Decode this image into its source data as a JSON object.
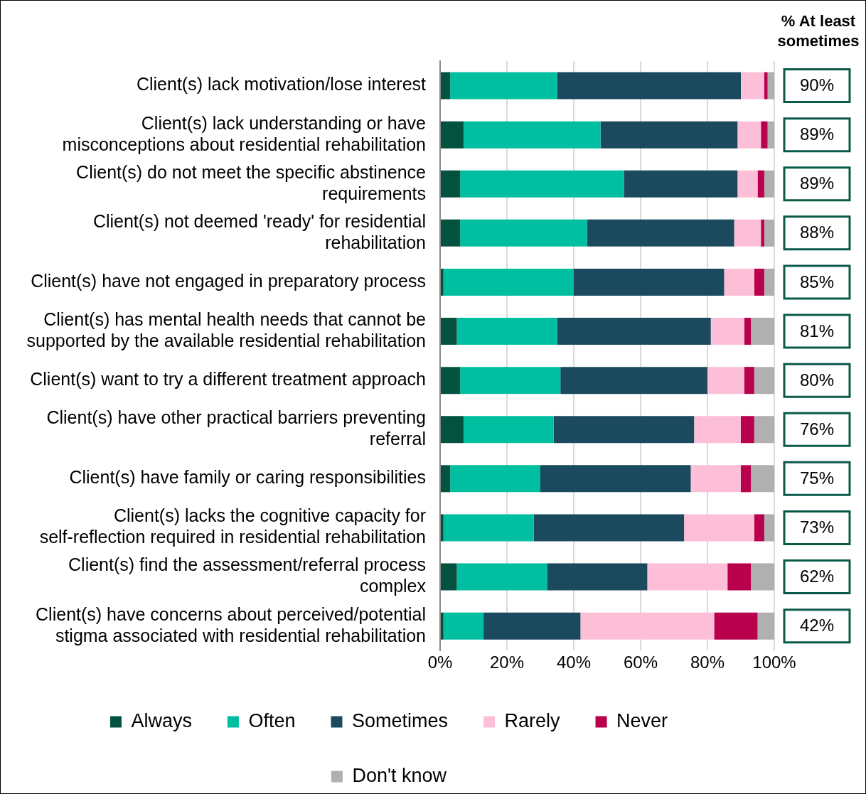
{
  "chart_data": {
    "type": "bar",
    "orientation": "horizontal",
    "stacked": true,
    "categories": [
      "Client(s) lack motivation/lose interest",
      "Client(s) lack understanding or have misconceptions about residential rehabilitation",
      "Client(s) do not meet the specific abstinence requirements",
      "Client(s) not deemed 'ready' for residential rehabilitation",
      "Client(s) have not engaged in preparatory process",
      "Client(s) has mental health needs that cannot be supported by the available residential rehabilitation",
      "Client(s) want to try a different treatment approach",
      "Client(s) have other practical barriers preventing referral",
      "Client(s) have family or caring responsibilities",
      "Client(s) lacks the cognitive capacity for self-reflection required in residential rehabilitation",
      "Client(s) find the assessment/referral process complex",
      "Client(s) have concerns about perceived/potential stigma associated with residential rehabilitation"
    ],
    "series": [
      {
        "name": "Always",
        "color": "#03513f",
        "values": [
          3,
          7,
          6,
          6,
          1,
          5,
          6,
          7,
          3,
          1,
          5,
          1
        ]
      },
      {
        "name": "Often",
        "color": "#00bfa0",
        "values": [
          32,
          41,
          49,
          38,
          39,
          30,
          30,
          27,
          27,
          27,
          27,
          12
        ]
      },
      {
        "name": "Sometimes",
        "color": "#1b4a5f",
        "values": [
          55,
          41,
          34,
          44,
          45,
          46,
          44,
          42,
          45,
          45,
          30,
          29
        ]
      },
      {
        "name": "Rarely",
        "color": "#fdbfd8",
        "values": [
          7,
          7,
          6,
          8,
          9,
          10,
          11,
          14,
          15,
          21,
          24,
          40
        ]
      },
      {
        "name": "Never",
        "color": "#b8004c",
        "values": [
          1,
          2,
          2,
          1,
          3,
          2,
          3,
          4,
          3,
          3,
          7,
          13
        ]
      },
      {
        "name": "Don't know",
        "color": "#b0b0b0",
        "values": [
          2,
          2,
          3,
          3,
          3,
          7,
          6,
          6,
          7,
          3,
          7,
          5
        ]
      }
    ],
    "xlim": [
      0,
      100
    ],
    "xticks": [
      {
        "value": 0,
        "label": "0%"
      },
      {
        "value": 20,
        "label": "20%"
      },
      {
        "value": 40,
        "label": "40%"
      },
      {
        "value": 60,
        "label": "60%"
      },
      {
        "value": 80,
        "label": "80%"
      },
      {
        "value": 100,
        "label": "100%"
      }
    ],
    "grid": "x",
    "legend": "bottom",
    "annotations": [
      "% At least sometimes",
      "90%",
      "89%",
      "89%",
      "88%",
      "85%",
      "81%",
      "80%",
      "76%",
      "75%",
      "73%",
      "62%",
      "42%"
    ]
  }
}
